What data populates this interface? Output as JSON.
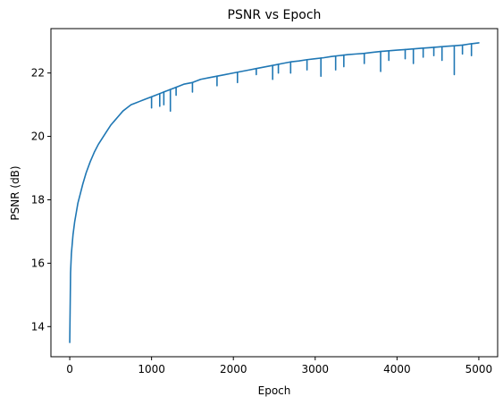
{
  "chart_data": {
    "type": "line",
    "title": "PSNR vs Epoch",
    "xlabel": "Epoch",
    "ylabel": "PSNR (dB)",
    "xlim": [
      -230,
      5230
    ],
    "ylim": [
      13.05,
      23.4
    ],
    "xticks": [
      0,
      1000,
      2000,
      3000,
      4000,
      5000
    ],
    "yticks": [
      14,
      16,
      18,
      20,
      22
    ],
    "grid": false,
    "line_color": "#1f77b4",
    "series": [
      {
        "x": [
          0,
          10,
          20,
          40,
          60,
          80,
          100,
          130,
          160,
          200,
          250,
          300,
          350,
          400,
          450,
          500,
          550,
          600,
          650,
          700,
          750,
          800,
          850,
          900,
          950,
          1000,
          1050,
          1100,
          1150,
          1200,
          1300,
          1400,
          1500,
          1600,
          1700,
          1800,
          1900,
          2000,
          2100,
          2200,
          2300,
          2400,
          2500,
          2600,
          2700,
          2800,
          2900,
          3000,
          3100,
          3200,
          3300,
          3400,
          3500,
          3600,
          3700,
          3800,
          3900,
          4000,
          4100,
          4200,
          4300,
          4400,
          4500,
          4600,
          4700,
          4800,
          4900,
          5000
        ],
        "values": [
          13.5,
          15.7,
          16.3,
          16.9,
          17.3,
          17.6,
          17.9,
          18.2,
          18.5,
          18.85,
          19.2,
          19.5,
          19.75,
          19.95,
          20.15,
          20.35,
          20.5,
          20.65,
          20.8,
          20.9,
          21.0,
          21.05,
          21.1,
          21.15,
          21.2,
          21.25,
          21.3,
          21.35,
          21.4,
          21.45,
          21.55,
          21.65,
          21.7,
          21.8,
          21.85,
          21.9,
          21.95,
          22.0,
          22.05,
          22.1,
          22.15,
          22.2,
          22.25,
          22.3,
          22.35,
          22.38,
          22.42,
          22.45,
          22.48,
          22.52,
          22.55,
          22.58,
          22.6,
          22.62,
          22.65,
          22.68,
          22.7,
          22.72,
          22.74,
          22.76,
          22.78,
          22.8,
          22.82,
          22.84,
          22.86,
          22.88,
          22.92,
          22.95
        ]
      }
    ],
    "dips": [
      {
        "x": 1000,
        "y": 20.9
      },
      {
        "x": 1100,
        "y": 20.95
      },
      {
        "x": 1150,
        "y": 21.0
      },
      {
        "x": 1230,
        "y": 20.8
      },
      {
        "x": 1300,
        "y": 21.3
      },
      {
        "x": 1500,
        "y": 21.4
      },
      {
        "x": 1800,
        "y": 21.6
      },
      {
        "x": 2050,
        "y": 21.7
      },
      {
        "x": 2280,
        "y": 21.95
      },
      {
        "x": 2480,
        "y": 21.8
      },
      {
        "x": 2550,
        "y": 22.0
      },
      {
        "x": 2700,
        "y": 22.0
      },
      {
        "x": 2900,
        "y": 22.1
      },
      {
        "x": 3070,
        "y": 21.9
      },
      {
        "x": 3250,
        "y": 22.1
      },
      {
        "x": 3350,
        "y": 22.2
      },
      {
        "x": 3600,
        "y": 22.3
      },
      {
        "x": 3800,
        "y": 22.05
      },
      {
        "x": 3900,
        "y": 22.4
      },
      {
        "x": 4100,
        "y": 22.45
      },
      {
        "x": 4200,
        "y": 22.3
      },
      {
        "x": 4320,
        "y": 22.5
      },
      {
        "x": 4450,
        "y": 22.55
      },
      {
        "x": 4550,
        "y": 22.4
      },
      {
        "x": 4700,
        "y": 21.95
      },
      {
        "x": 4800,
        "y": 22.6
      },
      {
        "x": 4910,
        "y": 22.55
      }
    ]
  }
}
